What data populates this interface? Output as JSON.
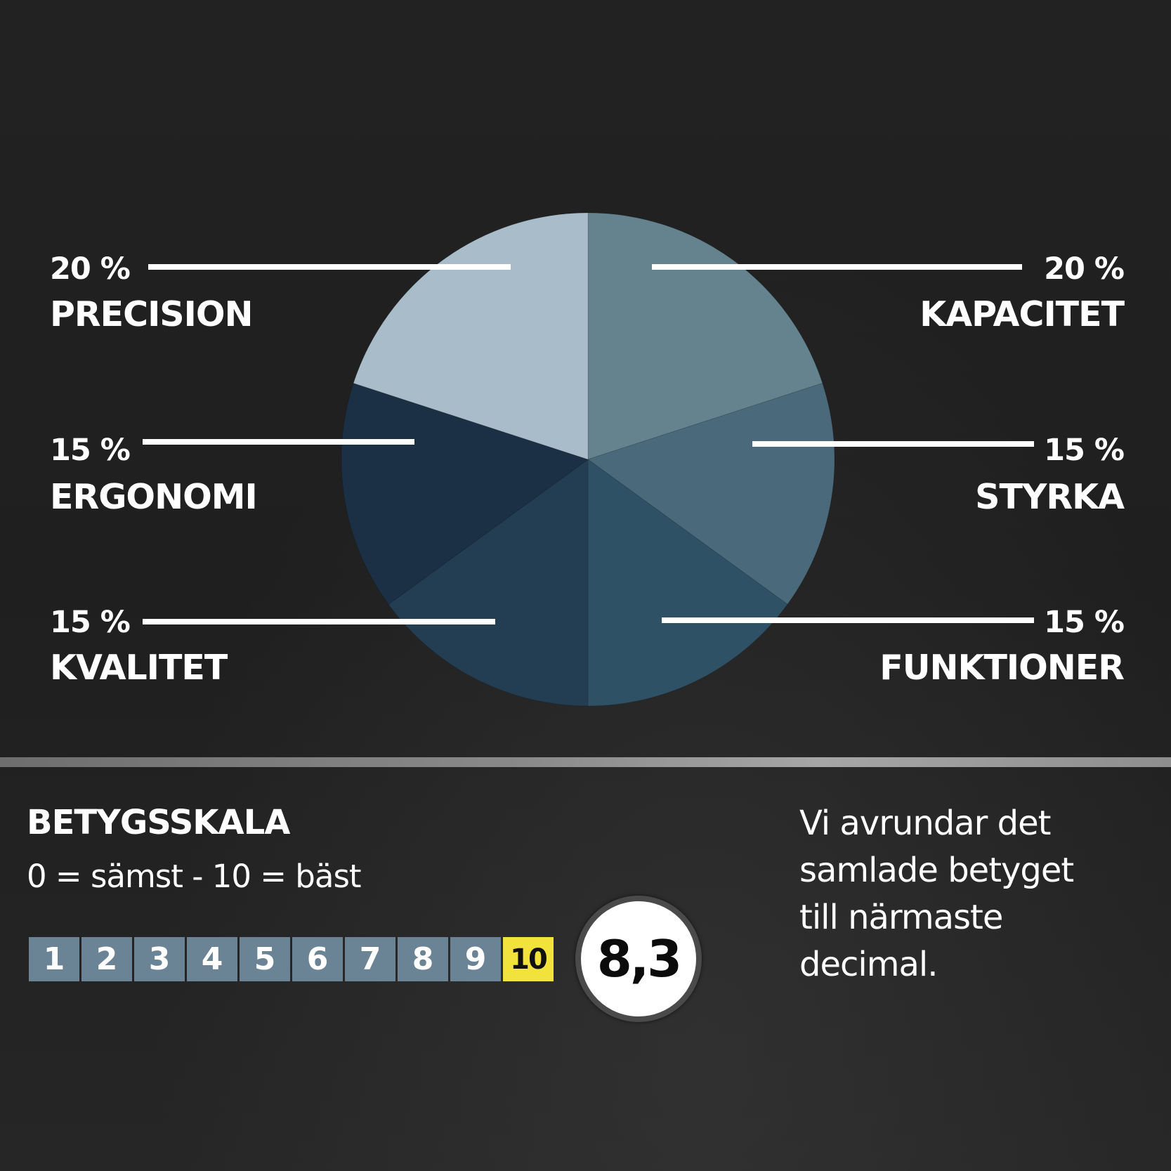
{
  "chart_data": {
    "type": "pie",
    "slices": [
      {
        "label": "KAPACITET",
        "percent_label": "20 %",
        "value": 20,
        "color": "#65828f"
      },
      {
        "label": "STYRKA",
        "percent_label": "15 %",
        "value": 15,
        "color": "#4a6a7c"
      },
      {
        "label": "FUNKTIONER",
        "percent_label": "15 %",
        "value": 15,
        "color": "#2f5166"
      },
      {
        "label": "KVALITET",
        "percent_label": "15 %",
        "value": 15,
        "color": "#233e52"
      },
      {
        "label": "ERGONOMI",
        "percent_label": "15 %",
        "value": 15,
        "color": "#1b3045"
      },
      {
        "label": "PRECISION",
        "percent_label": "20 %",
        "value": 20,
        "color": "#a8bcc9"
      }
    ]
  },
  "rating": {
    "title": "BETYGSSKALA",
    "subtitle": "0 = sämst - 10 = bäst",
    "scale": [
      "1",
      "2",
      "3",
      "4",
      "5",
      "6",
      "7",
      "8",
      "9",
      "10"
    ],
    "active_value": "10",
    "score": "8,3",
    "note_lines": [
      "Vi  avrundar det",
      "samlade betyget",
      "till närmaste",
      "decimal."
    ]
  },
  "colors": {
    "background": "#202020",
    "leader_line": "#ffffff",
    "scale_cell": "#6a8496",
    "scale_active": "#f2e23c"
  }
}
